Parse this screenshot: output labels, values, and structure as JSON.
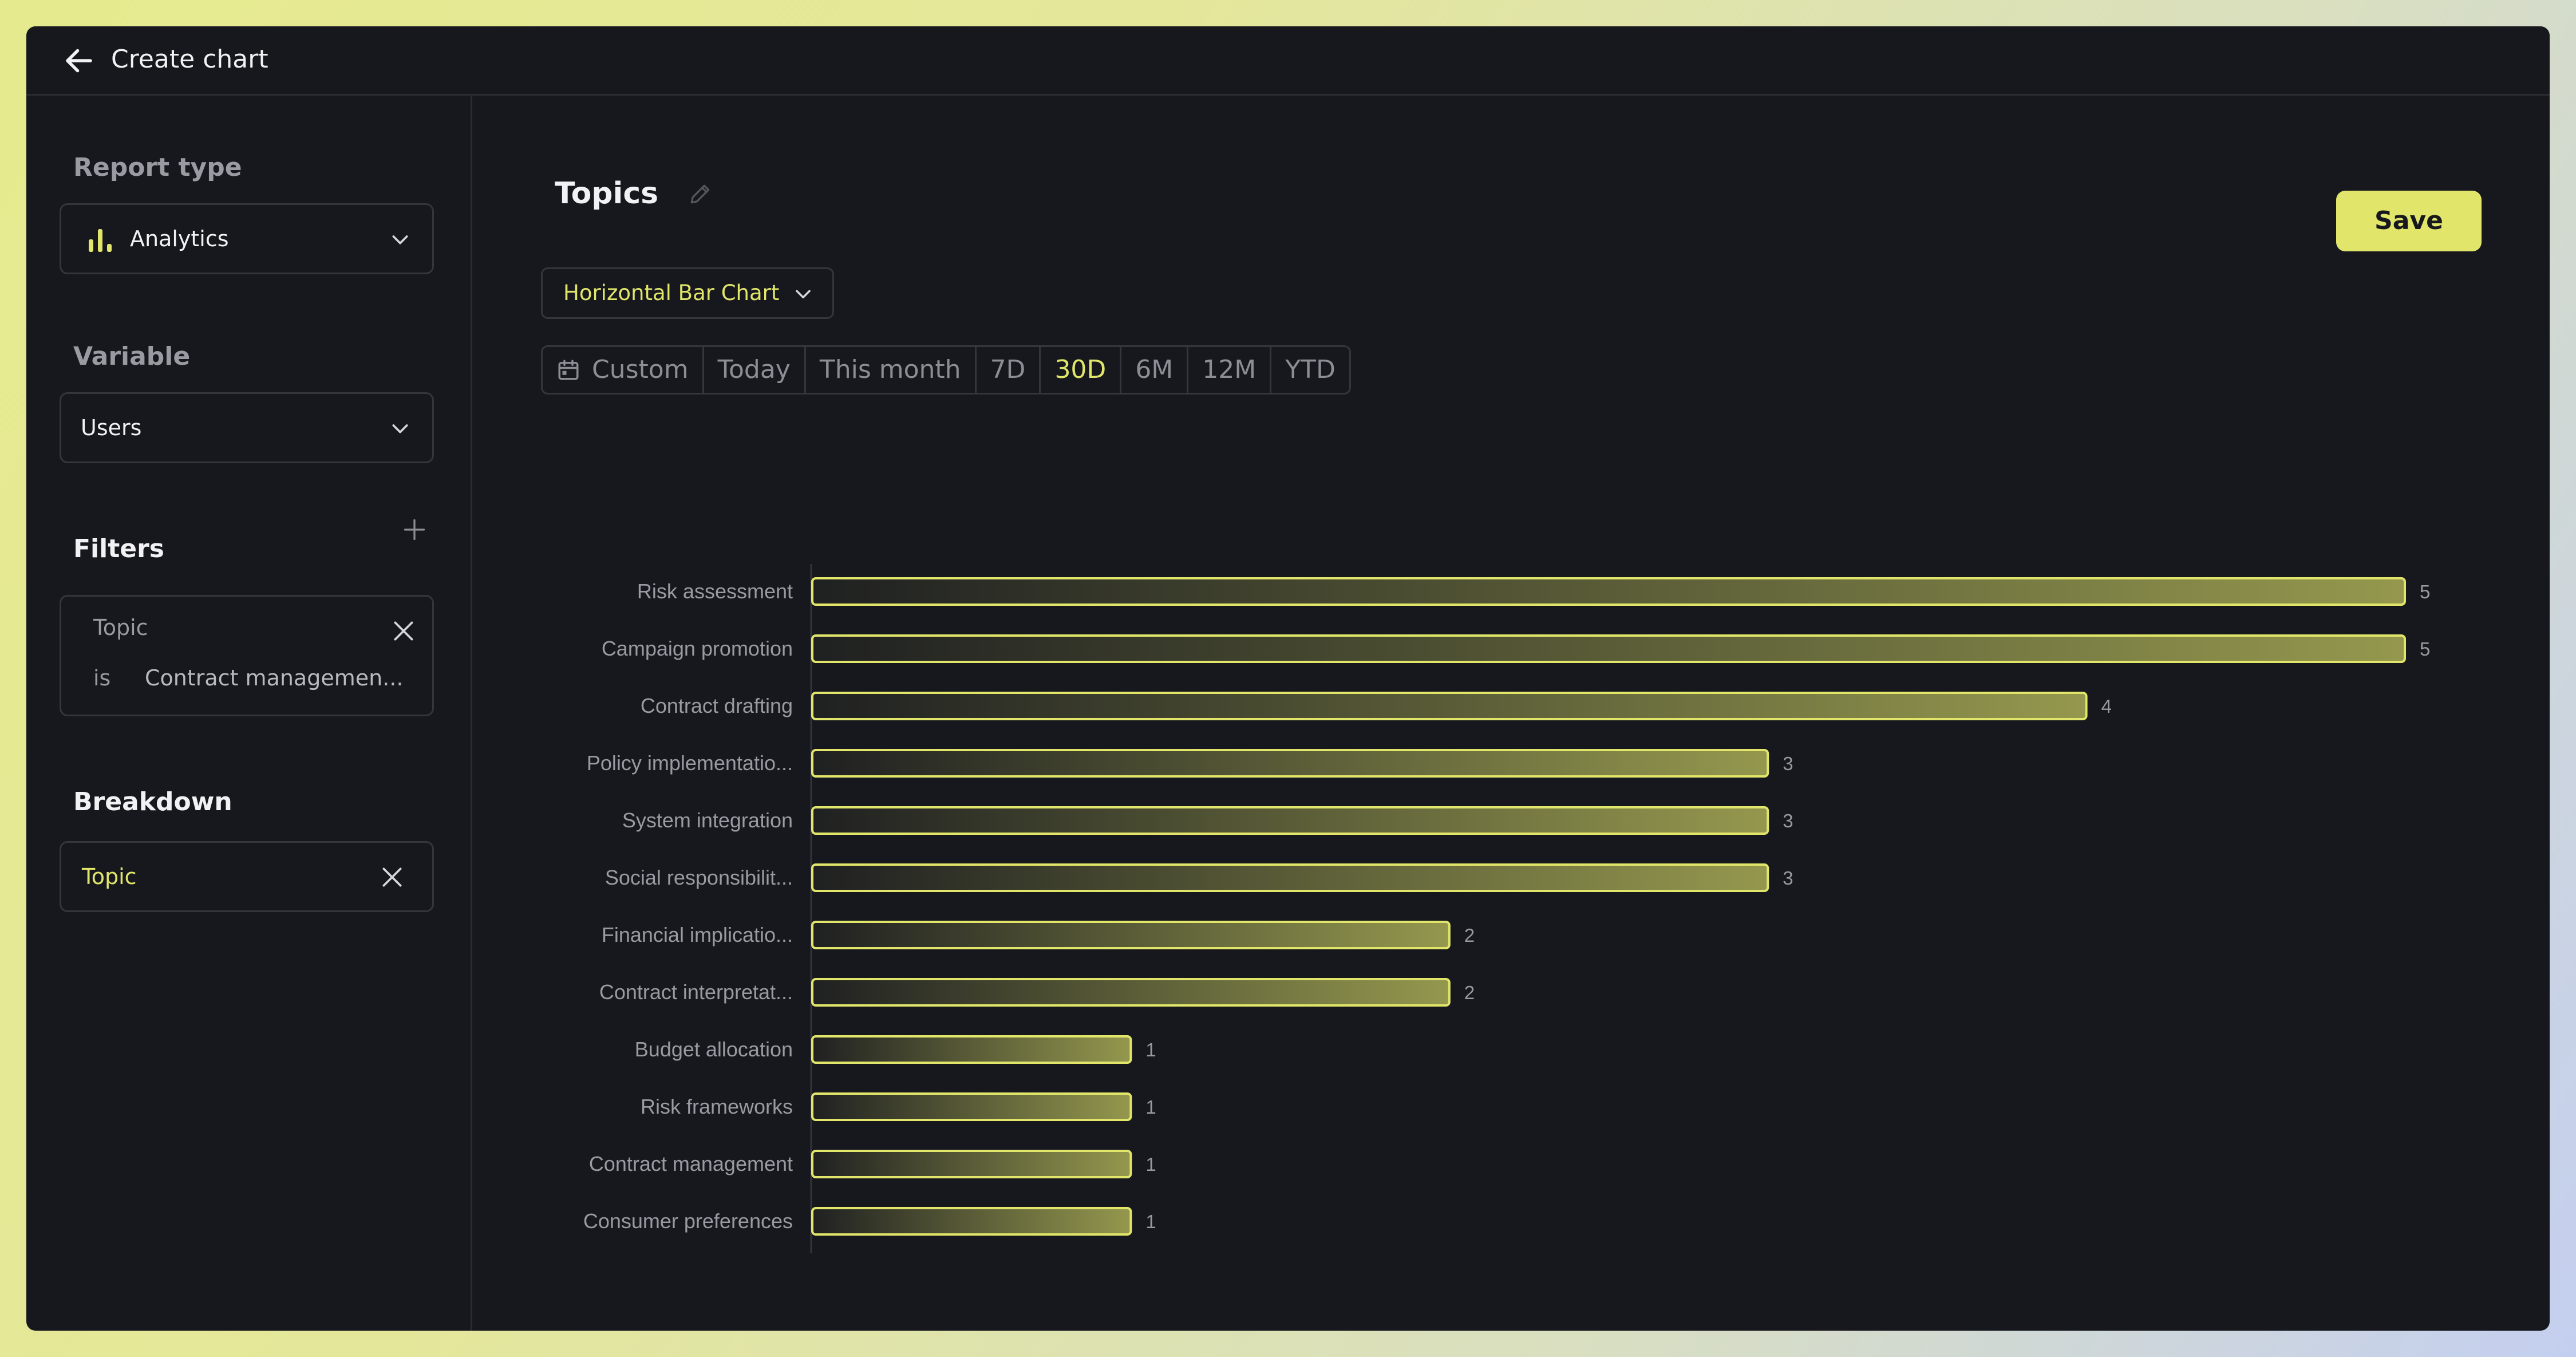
{
  "header": {
    "title": "Create chart",
    "back_icon": "arrow-left-icon"
  },
  "sidebar": {
    "report_type": {
      "label": "Report type",
      "value": "Analytics",
      "icon": "bar-chart-icon"
    },
    "variable": {
      "label": "Variable",
      "value": "Users"
    },
    "filters": {
      "label": "Filters",
      "items": [
        {
          "field": "Topic",
          "operator": "is",
          "value": "Contract managemen..."
        }
      ]
    },
    "breakdown": {
      "label": "Breakdown",
      "value": "Topic"
    }
  },
  "main": {
    "title": "Topics",
    "save_label": "Save",
    "chart_type_label": "Horizontal Bar Chart",
    "ranges": [
      "Custom",
      "Today",
      "This month",
      "7D",
      "30D",
      "6M",
      "12M",
      "YTD"
    ],
    "active_range": "30D"
  },
  "colors": {
    "accent": "#e1e66a",
    "background": "#17181e",
    "border": "#34363e"
  },
  "chart_data": {
    "type": "bar",
    "orientation": "horizontal",
    "categories": [
      "Risk assessment",
      "Campaign promotion",
      "Contract drafting",
      "Policy implementatio...",
      "System integration",
      "Social responsibilit...",
      "Financial implicatio...",
      "Contract interpretat...",
      "Budget allocation",
      "Risk frameworks",
      "Contract management",
      "Consumer preferences"
    ],
    "values": [
      5,
      5,
      4,
      3,
      3,
      3,
      2,
      2,
      1,
      1,
      1,
      1
    ],
    "xlim": [
      0,
      5
    ]
  }
}
